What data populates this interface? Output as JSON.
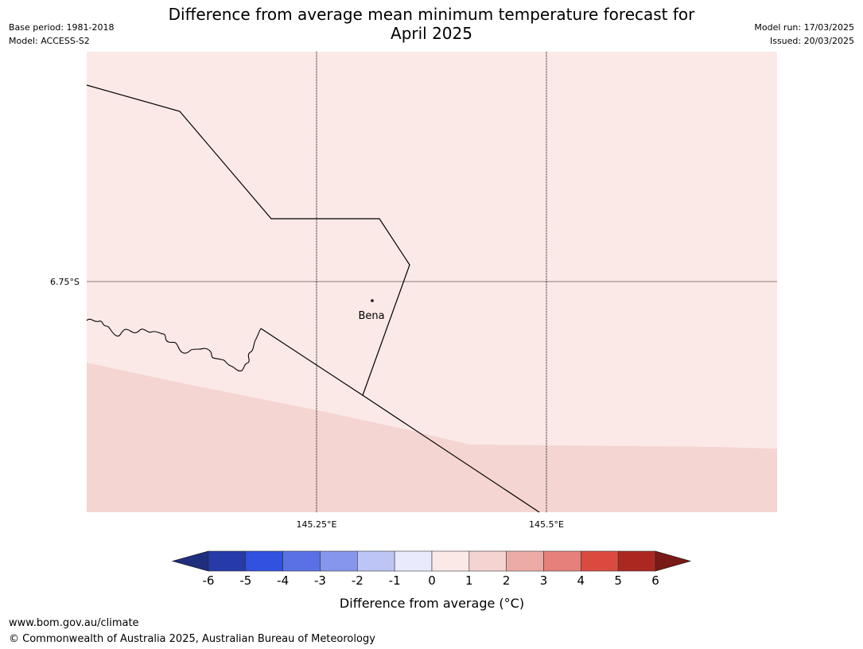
{
  "header": {
    "base_period": "Base period: 1981-2018",
    "model": "Model: ACCESS-S2",
    "model_run": "Model run: 17/03/2025",
    "issued": "Issued: 20/03/2025"
  },
  "title": {
    "line1": "Difference from average mean minimum temperature forecast for",
    "line2": "April 2025"
  },
  "map": {
    "lat_labels": [
      "6.75°S"
    ],
    "lon_labels": [
      "145.25°E",
      "145.5°E"
    ],
    "place_label": "Bena",
    "colors": {
      "light_zone": "#fbe9e7",
      "mid_zone": "#f4d5d2",
      "gridline_lat": "#8a7a78",
      "gridline_lon": "#000000",
      "border": "#000000"
    }
  },
  "colorbar": {
    "label": "Difference from average (°C)",
    "ticks": [
      "-6",
      "-5",
      "-4",
      "-3",
      "-2",
      "-1",
      "0",
      "1",
      "2",
      "3",
      "4",
      "5",
      "6"
    ],
    "low_extend_color": "#1f2f7d",
    "high_extend_color": "#7a1a16",
    "bins": [
      "#263aa8",
      "#3151de",
      "#5a71e6",
      "#8596ec",
      "#bcc5f5",
      "#e9ebfc",
      "#fbe9e7",
      "#f4d3d0",
      "#edaba6",
      "#e5817a",
      "#db4a3f",
      "#ab2820"
    ]
  },
  "footer": {
    "url": "www.bom.gov.au/climate",
    "copyright": "© Commonwealth of Australia 2025, Australian Bureau of Meteorology"
  }
}
